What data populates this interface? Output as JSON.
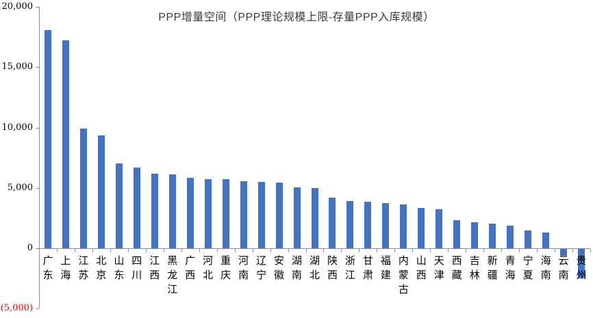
{
  "chart_data": {
    "type": "bar",
    "title": "PPP增量空间（PPP理论规模上限-存量PPP入库规模）",
    "categories": [
      "广东",
      "上海",
      "江苏",
      "北京",
      "山东",
      "四川",
      "江西",
      "黑龙江",
      "广西",
      "河北",
      "重庆",
      "河南",
      "辽宁",
      "安徽",
      "湖南",
      "湖北",
      "陕西",
      "浙江",
      "甘肃",
      "福建",
      "内蒙古",
      "山西",
      "天津",
      "西藏",
      "吉林",
      "新疆",
      "青海",
      "宁夏",
      "海南",
      "云南",
      "贵州"
    ],
    "values": [
      18100,
      17250,
      9900,
      9350,
      7000,
      6700,
      6200,
      6100,
      5850,
      5750,
      5700,
      5550,
      5500,
      5450,
      5050,
      5000,
      4200,
      3900,
      3850,
      3750,
      3600,
      3350,
      3250,
      2350,
      2150,
      2050,
      1850,
      1500,
      1300,
      -550,
      -2450
    ],
    "xlabel": "",
    "ylabel": "",
    "ylim": [
      -5000,
      20000
    ],
    "ytick_interval": 5000,
    "ytick_labels": [
      "20,000",
      "15,000",
      "10,000",
      "5,000",
      "0",
      "(5,000)"
    ],
    "grid": false,
    "legend": "none",
    "colors": {
      "bar": "#4472C4",
      "axis": "#8C8C8C",
      "tick_label": "#000000",
      "negative_tick_label": "#FF0000",
      "title": "#3B3B3B"
    }
  }
}
